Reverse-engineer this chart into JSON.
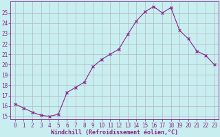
{
  "x": [
    0,
    1,
    2,
    3,
    4,
    5,
    6,
    7,
    8,
    9,
    10,
    11,
    12,
    13,
    14,
    15,
    16,
    17,
    18,
    19,
    20,
    21,
    22,
    23
  ],
  "y": [
    16.2,
    15.8,
    15.4,
    15.1,
    15.0,
    15.2,
    17.3,
    17.8,
    18.3,
    19.8,
    20.5,
    21.0,
    21.5,
    22.9,
    24.2,
    25.1,
    25.6,
    25.0,
    25.5,
    23.3,
    22.5,
    21.3,
    20.9,
    20.0
  ],
  "line_color": "#882288",
  "marker": "x",
  "marker_size": 2.5,
  "bg_color": "#c8eef0",
  "grid_color": "#b0b8c0",
  "xlabel": "Windchill (Refroidissement éolien,°C)",
  "ylabel_ticks": [
    15,
    16,
    17,
    18,
    19,
    20,
    21,
    22,
    23,
    24,
    25
  ],
  "xlim": [
    -0.5,
    23.5
  ],
  "ylim": [
    14.7,
    26.1
  ],
  "tick_color": "#882288",
  "label_color": "#882288",
  "font_name": "monospace",
  "tick_fontsize": 5.5,
  "xlabel_fontsize": 6.0
}
